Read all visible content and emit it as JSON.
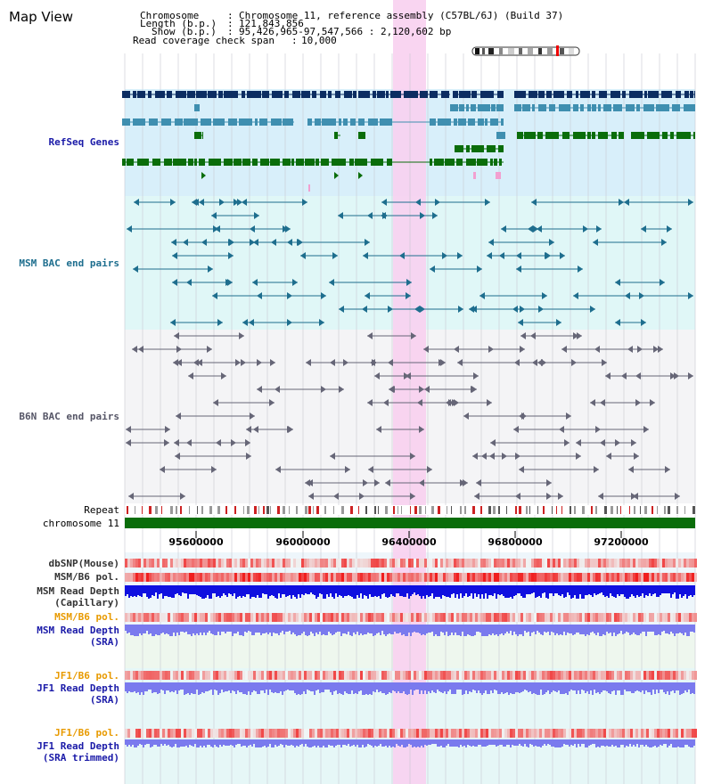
{
  "title": "Map View",
  "header": {
    "chromosome_key": "Chromosome",
    "chromosome_value": "Chromosome 11, reference assembly (C57BL/6J) (Build 37)",
    "length_key": "Length (b.p.)",
    "length_value": "121,843,856",
    "show_key": "Show (b.p.)",
    "show_value": "95,426,965-97,547,566 : 2,120,602 bp",
    "read_key": "Read coverage check span",
    "read_value": "10,000"
  },
  "tracks": {
    "refseq": "RefSeq Genes",
    "msm_bac": "MSM BAC end pairs",
    "b6n_bac": "B6N BAC end pairs",
    "repeat": "Repeat",
    "chromosome": "chromosome 11",
    "dbsnp": "dbSNP(Mouse)",
    "msm_b6_pol": "MSM/B6 pol.",
    "msm_read_depth_cap_1": "MSM Read Depth",
    "msm_read_depth_cap_2": "(Capillary)",
    "msm_b6_pol_2": "MSM/B6 pol.",
    "msm_read_depth_sra_1": "MSM Read Depth",
    "msm_read_depth_sra_2": "(SRA)",
    "jf1_b6_pol": "JF1/B6 pol.",
    "jf1_read_depth_sra_1": "JF1 Read Depth",
    "jf1_read_depth_sra_2": "(SRA)",
    "jf1_b6_pol_2": "JF1/B6 pol.",
    "jf1_read_depth_trim_1": "JF1 Read Depth",
    "jf1_read_depth_trim_2": "(SRA trimmed)"
  },
  "axis_ticks": [
    "95600000",
    "96000000",
    "96400000",
    "96800000",
    "97200000"
  ],
  "colors": {
    "refseq_bg": "#d8effa",
    "msm_bg": "#e0f7f7",
    "b6n_bg": "#f4f4f6",
    "highlight": "#f8d0f0",
    "gene_dark": "#0c2d62",
    "gene_mid": "#3f8fb0",
    "gene_green": "#0a6d0a",
    "label_blue": "#1a1aa8",
    "label_teal": "#1e6e8e",
    "label_orange": "#e89a00",
    "label_gray": "#555566",
    "depth_blue": "#1010e0",
    "depth_light": "#7a7aee"
  }
}
